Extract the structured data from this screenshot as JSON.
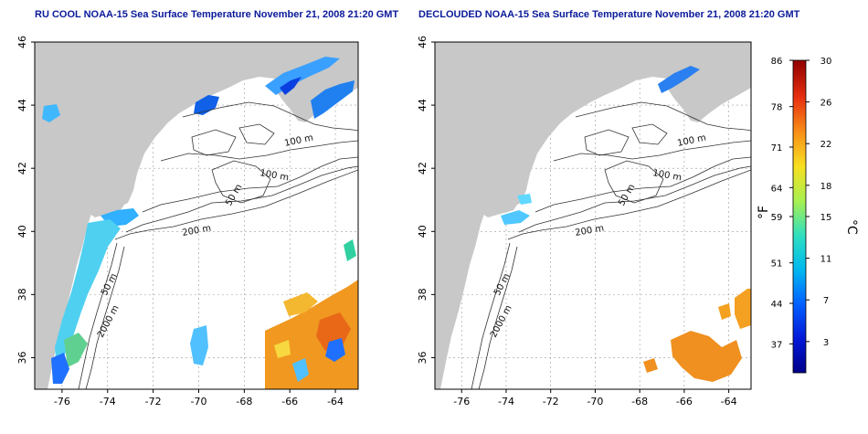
{
  "panels": [
    {
      "title": "RU COOL NOAA-15 Sea Surface Temperature November 21, 2008 21:20 GMT",
      "view": "raw"
    },
    {
      "title": "DECLOUDED NOAA-15 Sea Surface Temperature November 21, 2008 21:20 GMT",
      "view": "declouded"
    }
  ],
  "axes": {
    "lon_ticks": [
      "-76",
      "-74",
      "-72",
      "-70",
      "-68",
      "-66",
      "-64"
    ],
    "lat_ticks": [
      "36",
      "38",
      "40",
      "42",
      "44",
      "46"
    ],
    "lon_range": [
      -77.2,
      -63.0
    ],
    "lat_range": [
      35.0,
      46.0
    ]
  },
  "contour_labels": [
    "100 m",
    "100 m",
    "50 m",
    "200 m",
    "50 m",
    "2000 m"
  ],
  "colorbar": {
    "fahrenheit_label": "°F",
    "celsius_label": "°C",
    "fahrenheit_ticks": [
      "86",
      "78",
      "71",
      "64",
      "59",
      "51",
      "44",
      "37"
    ],
    "celsius_ticks": [
      "30",
      "26",
      "22",
      "18",
      "15",
      "11",
      "7",
      "3"
    ],
    "celsius_range": [
      0,
      30
    ],
    "colors": [
      "#00008a",
      "#0018d8",
      "#0060ff",
      "#00b8f0",
      "#30e0c0",
      "#a8f050",
      "#f8e020",
      "#f89018",
      "#e83010",
      "#900000"
    ]
  }
}
